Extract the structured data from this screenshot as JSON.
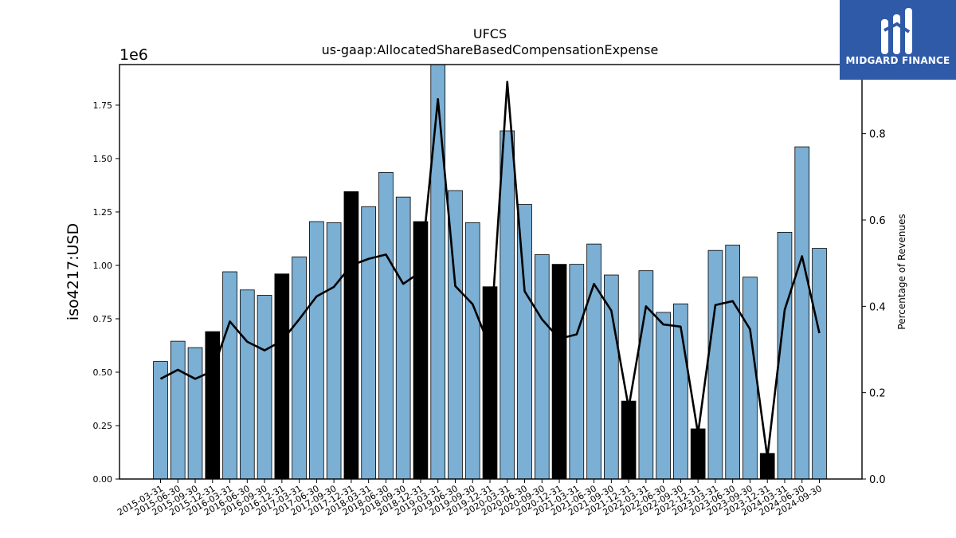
{
  "logo": {
    "text": "MIDGARD FINANCE",
    "background": "#2f5aa8",
    "icon": "midgard-logo-icon"
  },
  "chart_data": {
    "type": "bar",
    "title": "UFCS",
    "subtitle": "us-gaap:AllocatedShareBasedCompensationExpense",
    "ylabel": "iso4217:USD",
    "y_scale_label": "1e6",
    "y2label": "Percentage of Revenues",
    "ylim": [
      0,
      1.94
    ],
    "y2lim": [
      0,
      0.96
    ],
    "yticks": [
      "0.00",
      "0.25",
      "0.50",
      "0.75",
      "1.00",
      "1.25",
      "1.50",
      "1.75"
    ],
    "y2ticks": [
      "0.0",
      "0.2",
      "0.4",
      "0.6",
      "0.8"
    ],
    "bar_color": "#7bafd4",
    "highlight_color": "#000000",
    "line_color": "#000000",
    "categories": [
      "2015-03-31",
      "2015-06-30",
      "2015-09-30",
      "2015-12-31",
      "2016-03-31",
      "2016-06-30",
      "2016-09-30",
      "2016-12-31",
      "2017-03-31",
      "2017-06-30",
      "2017-09-30",
      "2017-12-31",
      "2018-03-31",
      "2018-06-30",
      "2018-09-30",
      "2018-12-31",
      "2019-03-31",
      "2019-06-30",
      "2019-09-30",
      "2019-12-31",
      "2020-03-31",
      "2020-06-30",
      "2020-09-30",
      "2020-12-31",
      "2021-03-31",
      "2021-06-30",
      "2021-09-30",
      "2021-12-31",
      "2022-03-31",
      "2022-06-30",
      "2022-09-30",
      "2022-12-31",
      "2023-03-31",
      "2023-06-30",
      "2023-09-30",
      "2023-12-31",
      "2024-03-31",
      "2024-06-30",
      "2024-09-30"
    ],
    "series": [
      {
        "values": [
          0.55,
          0.645,
          0.615,
          0.69,
          0.97,
          0.885,
          0.86,
          0.96,
          1.04,
          1.205,
          1.2,
          1.345,
          1.275,
          1.435,
          1.32,
          1.205,
          1.94,
          1.35,
          1.2,
          0.9,
          1.63,
          1.285,
          1.05,
          1.005,
          1.005,
          1.1,
          0.955,
          0.365,
          0.975,
          0.78,
          0.82,
          0.235,
          1.07,
          1.095,
          0.945,
          0.12,
          1.155,
          1.555,
          1.08
        ],
        "highlighted": [
          false,
          false,
          false,
          true,
          false,
          false,
          false,
          true,
          false,
          false,
          false,
          true,
          false,
          false,
          false,
          true,
          false,
          false,
          false,
          true,
          false,
          false,
          false,
          true,
          false,
          false,
          false,
          true,
          false,
          false,
          false,
          true,
          false,
          false,
          false,
          true,
          false,
          false,
          false
        ]
      },
      {
        "axis": "right",
        "type": "line",
        "values": [
          0.232,
          0.253,
          0.232,
          0.25,
          0.365,
          0.318,
          0.298,
          0.32,
          0.37,
          0.423,
          0.445,
          0.495,
          0.51,
          0.52,
          0.452,
          0.48,
          0.88,
          0.447,
          0.405,
          0.305,
          0.92,
          0.435,
          0.37,
          0.325,
          0.335,
          0.452,
          0.39,
          0.165,
          0.4,
          0.358,
          0.353,
          0.105,
          0.403,
          0.412,
          0.347,
          0.05,
          0.392,
          0.516,
          0.338
        ]
      }
    ]
  }
}
